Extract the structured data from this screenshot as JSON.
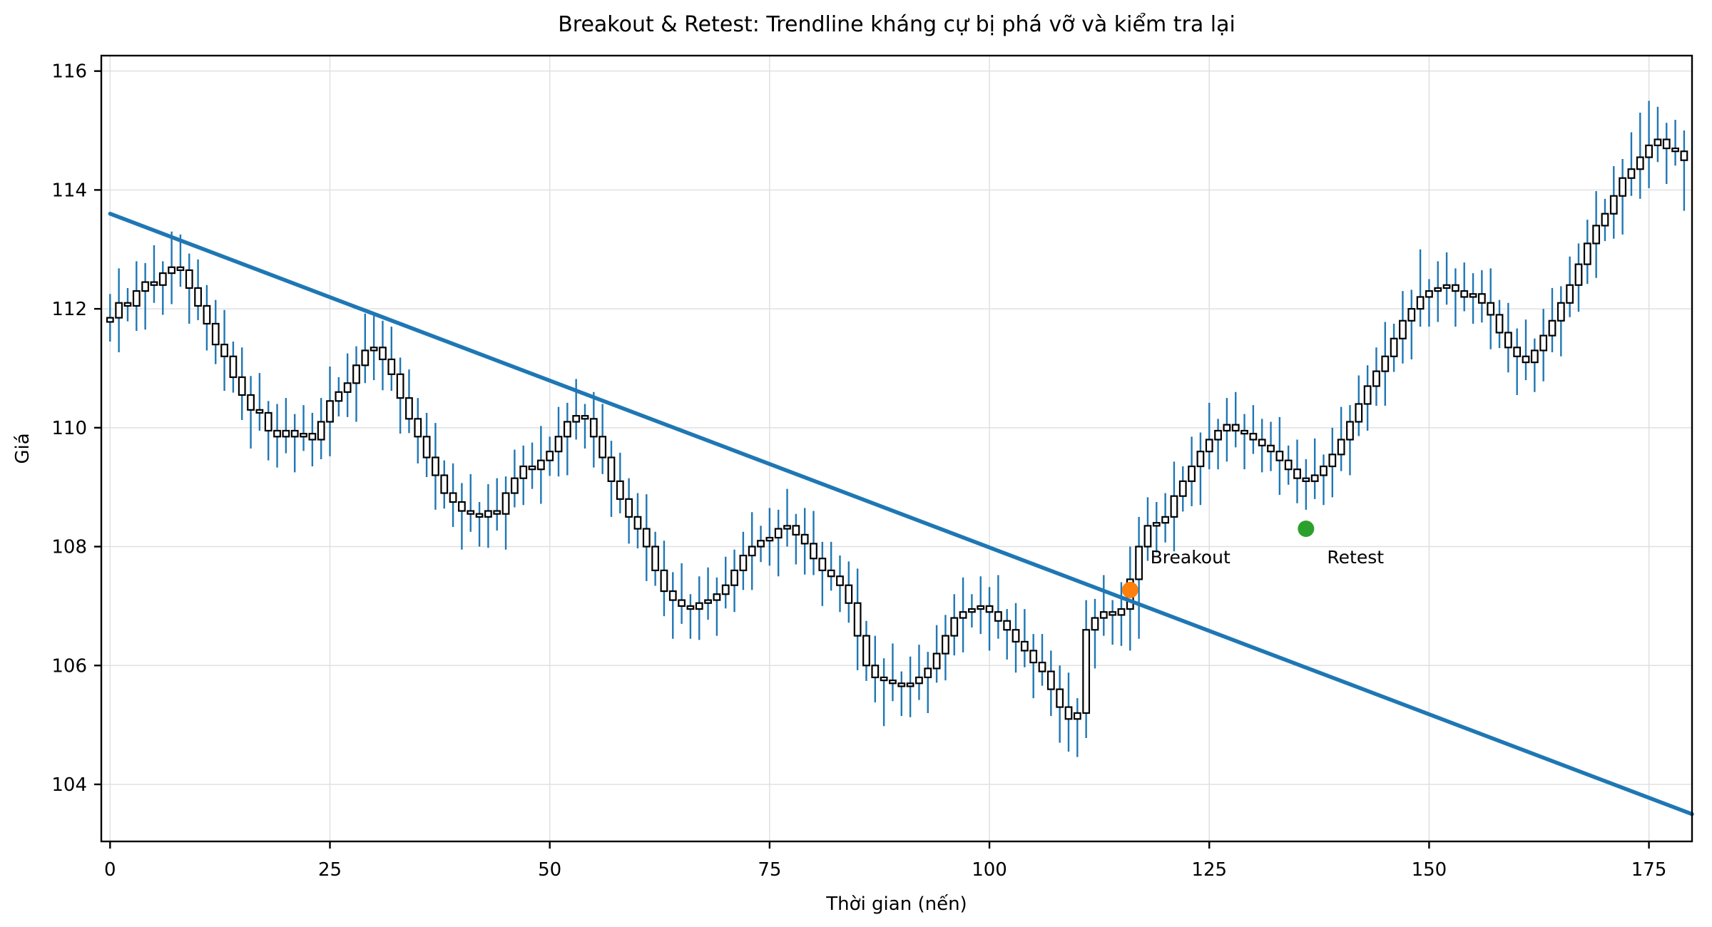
{
  "chart_data": {
    "type": "candlestick",
    "title": "Breakout & Retest: Trendline kháng cự bị phá vỡ và kiểm tra lại",
    "xlabel": "Thời gian (nến)",
    "ylabel": "Giá",
    "xlim": [
      -1,
      179.9
    ],
    "ylim": [
      103.04,
      116.26
    ],
    "x_ticks": [
      0,
      25,
      50,
      75,
      100,
      125,
      150,
      175
    ],
    "y_ticks": [
      104,
      106,
      108,
      110,
      112,
      114,
      116
    ],
    "grid": true,
    "legend": "none",
    "n_candles": 180,
    "open_first": 111.78,
    "closes": [
      111.85,
      112.1,
      112.05,
      112.3,
      112.45,
      112.4,
      112.6,
      112.7,
      112.65,
      112.35,
      112.05,
      111.75,
      111.4,
      111.2,
      110.85,
      110.55,
      110.3,
      110.25,
      109.95,
      109.85,
      109.95,
      109.85,
      109.9,
      109.8,
      110.1,
      110.45,
      110.6,
      110.75,
      111.05,
      111.3,
      111.35,
      111.15,
      110.9,
      110.5,
      110.15,
      109.85,
      109.5,
      109.2,
      108.9,
      108.75,
      108.6,
      108.55,
      108.5,
      108.6,
      108.55,
      108.9,
      109.15,
      109.35,
      109.3,
      109.45,
      109.6,
      109.85,
      110.1,
      110.2,
      110.15,
      109.85,
      109.5,
      109.1,
      108.8,
      108.5,
      108.3,
      108.0,
      107.6,
      107.25,
      107.1,
      107.0,
      106.95,
      107.05,
      107.1,
      107.2,
      107.35,
      107.6,
      107.85,
      108.0,
      108.1,
      108.15,
      108.3,
      108.35,
      108.2,
      108.05,
      107.8,
      107.6,
      107.5,
      107.35,
      107.05,
      106.5,
      106.0,
      105.8,
      105.75,
      105.7,
      105.65,
      105.7,
      105.8,
      105.95,
      106.2,
      106.5,
      106.8,
      106.9,
      106.95,
      107.0,
      106.9,
      106.75,
      106.6,
      106.4,
      106.25,
      106.05,
      105.9,
      105.6,
      105.3,
      105.1,
      105.2,
      106.6,
      106.8,
      106.9,
      106.85,
      106.95,
      107.45,
      108.0,
      108.35,
      108.4,
      108.5,
      108.85,
      109.1,
      109.35,
      109.6,
      109.8,
      109.95,
      110.05,
      109.95,
      109.9,
      109.8,
      109.7,
      109.6,
      109.45,
      109.3,
      109.15,
      109.1,
      109.2,
      109.35,
      109.55,
      109.8,
      110.1,
      110.4,
      110.7,
      110.95,
      111.2,
      111.5,
      111.8,
      112.0,
      112.2,
      112.3,
      112.35,
      112.4,
      112.3,
      112.2,
      112.25,
      112.1,
      111.9,
      111.6,
      111.35,
      111.2,
      111.1,
      111.3,
      111.55,
      111.8,
      112.1,
      112.4,
      112.75,
      113.1,
      113.4,
      113.6,
      113.9,
      114.2,
      114.35,
      114.55,
      114.75,
      114.85,
      114.7,
      114.65,
      114.5
    ],
    "wick_up_pattern": [
      0.4,
      0.58,
      0.25,
      0.5,
      0.32,
      0.62,
      0.2,
      0.45,
      0.55,
      0.28,
      0.48,
      0.35
    ],
    "wick_down_pattern": [
      0.52,
      0.28,
      0.6,
      0.24,
      0.45,
      0.33,
      0.58,
      0.26,
      0.42,
      0.65,
      0.3,
      0.5
    ],
    "wick_overrides": {
      "7": {
        "high": 113.3
      },
      "30": {
        "high": 111.88
      },
      "88": {
        "low": 104.98
      },
      "108": {
        "low": 104.7
      },
      "109": {
        "low": 104.55
      },
      "110": {
        "low": 104.46
      },
      "116": {
        "low": 106.25
      },
      "117": {
        "high": 108.5,
        "low": 106.45
      },
      "136": {
        "low": 108.62
      },
      "149": {
        "high": 113.0
      },
      "174": {
        "high": 115.3
      },
      "175": {
        "high": 115.5
      },
      "179": {
        "low": 113.65
      }
    },
    "trendline": {
      "x0": 0,
      "y0": 113.6,
      "x1": 179.9,
      "y1": 103.5,
      "color": "#1f77b4",
      "width": 5.5
    },
    "markers": [
      {
        "name": "breakout",
        "x": 116,
        "y": 107.27,
        "color": "#ff7f0e",
        "radius": 11.5,
        "label": "Breakout",
        "label_x": 118.3,
        "label_y": 107.8
      },
      {
        "name": "retest",
        "x": 136,
        "y": 108.3,
        "color": "#2ca02c",
        "radius": 11.5,
        "label": "Retest",
        "label_x": 138.4,
        "label_y": 107.8
      }
    ],
    "colors": {
      "wick": "#1f77b4",
      "body_fill": "#ffffff",
      "body_edge": "#000000",
      "grid": "#e0e0e0",
      "spine": "#000000",
      "tick": "#000000",
      "text": "#000000",
      "background": "#ffffff"
    }
  }
}
